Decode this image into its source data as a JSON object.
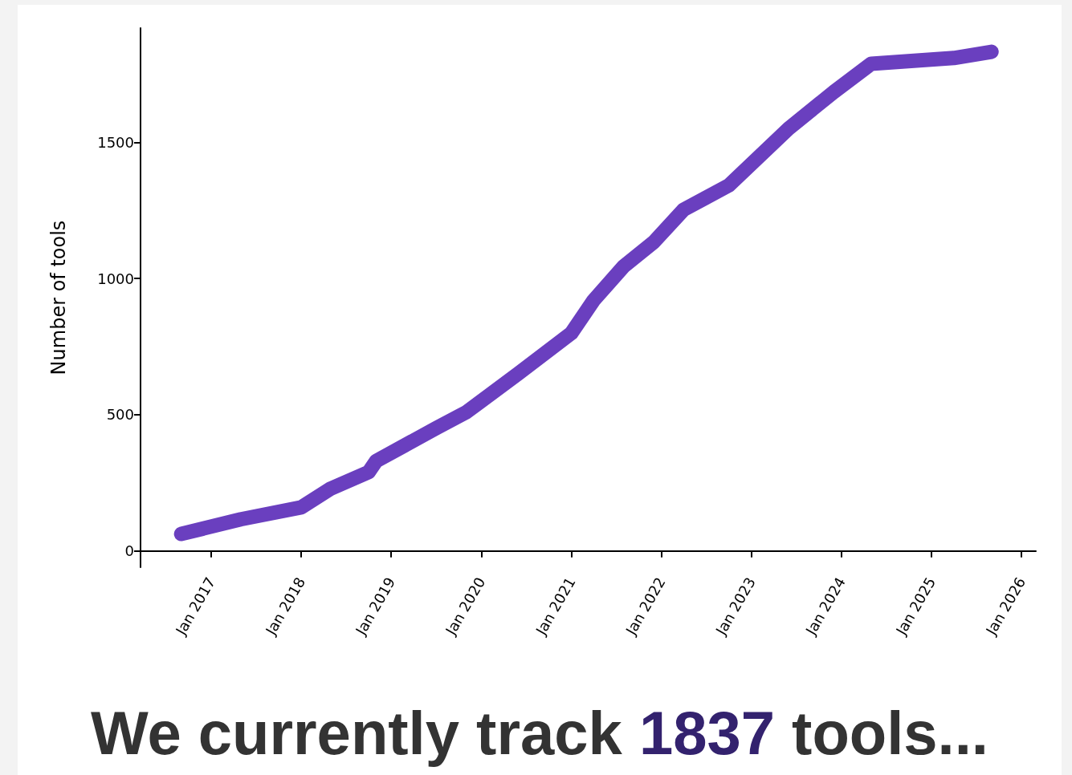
{
  "chart_data": {
    "type": "line",
    "title": "We currently track 1837 tools...",
    "ylabel": "Number of tools",
    "x": [
      "2016-09",
      "2017-05",
      "2018-01",
      "2018-05",
      "2018-10",
      "2018-11",
      "2019-07",
      "2019-11",
      "2020-06",
      "2021-01",
      "2021-04",
      "2021-08",
      "2021-12",
      "2022-04",
      "2022-10",
      "2023-06",
      "2023-12",
      "2024-05",
      "2025-04",
      "2025-09"
    ],
    "series": [
      {
        "color": "#6a3fbf",
        "values": [
          62,
          116,
          160,
          229,
          289,
          330,
          450,
          509,
          652,
          800,
          920,
          1045,
          1134,
          1253,
          1342,
          1551,
          1685,
          1789,
          1810,
          1833
        ]
      }
    ],
    "xlim": [
      "2016-03-20",
      "2026-02-28"
    ],
    "xticks": [
      {
        "value": "2017-01",
        "label": "Jan 2017"
      },
      {
        "value": "2018-01",
        "label": "Jan 2018"
      },
      {
        "value": "2019-01",
        "label": "Jan 2019"
      },
      {
        "value": "2020-01",
        "label": "Jan 2020"
      },
      {
        "value": "2021-01",
        "label": "Jan 2021"
      },
      {
        "value": "2022-01",
        "label": "Jan 2022"
      },
      {
        "value": "2023-01",
        "label": "Jan 2023"
      },
      {
        "value": "2024-01",
        "label": "Jan 2024"
      },
      {
        "value": "2025-01",
        "label": "Jan 2025"
      },
      {
        "value": "2026-01",
        "label": "Jan 2026"
      }
    ],
    "ylim": [
      -60,
      1920
    ],
    "yticks": [
      0,
      500,
      1000,
      1500
    ],
    "grid": false,
    "line_style": "solid"
  }
}
